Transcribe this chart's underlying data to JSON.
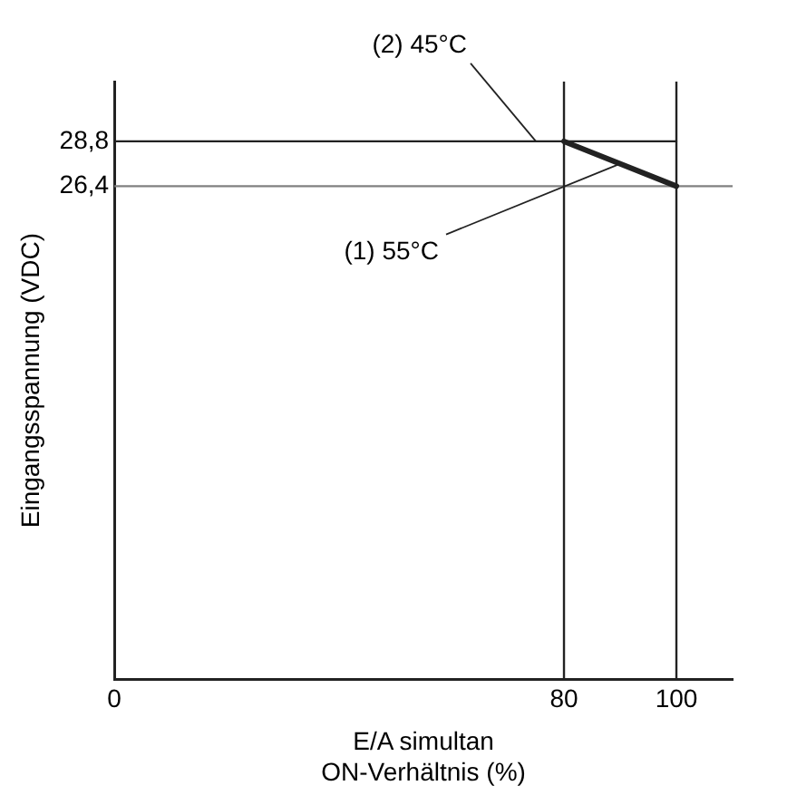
{
  "chart_data": {
    "type": "line",
    "xlabel": "E/A simultan\nON-Verhältnis (%)",
    "ylabel": "Eingangsspannung (VDC)",
    "xlim": [
      0,
      110
    ],
    "xticks": [
      0,
      80,
      100
    ],
    "ylim": [
      0,
      32
    ],
    "yticks": [
      {
        "value": 26.4,
        "label": "26,4"
      },
      {
        "value": 28.8,
        "label": "28,8"
      }
    ],
    "grid": false,
    "legend": false,
    "marker": "none",
    "line_style": "solid",
    "series": [
      {
        "name": "(1) 55°C",
        "color": "#222222",
        "x": [
          80,
          100
        ],
        "values": [
          28.8,
          26.4
        ]
      },
      {
        "name": "(2) 45°C",
        "color": "#222222",
        "x": [
          0,
          100
        ],
        "values": [
          28.8,
          28.8
        ]
      }
    ],
    "ref_lines": [
      {
        "axis": "y",
        "value": 26.4,
        "color": "#808080"
      },
      {
        "axis": "x",
        "value": 80,
        "color": "#222222"
      },
      {
        "axis": "x",
        "value": 100,
        "color": "#222222"
      }
    ]
  }
}
